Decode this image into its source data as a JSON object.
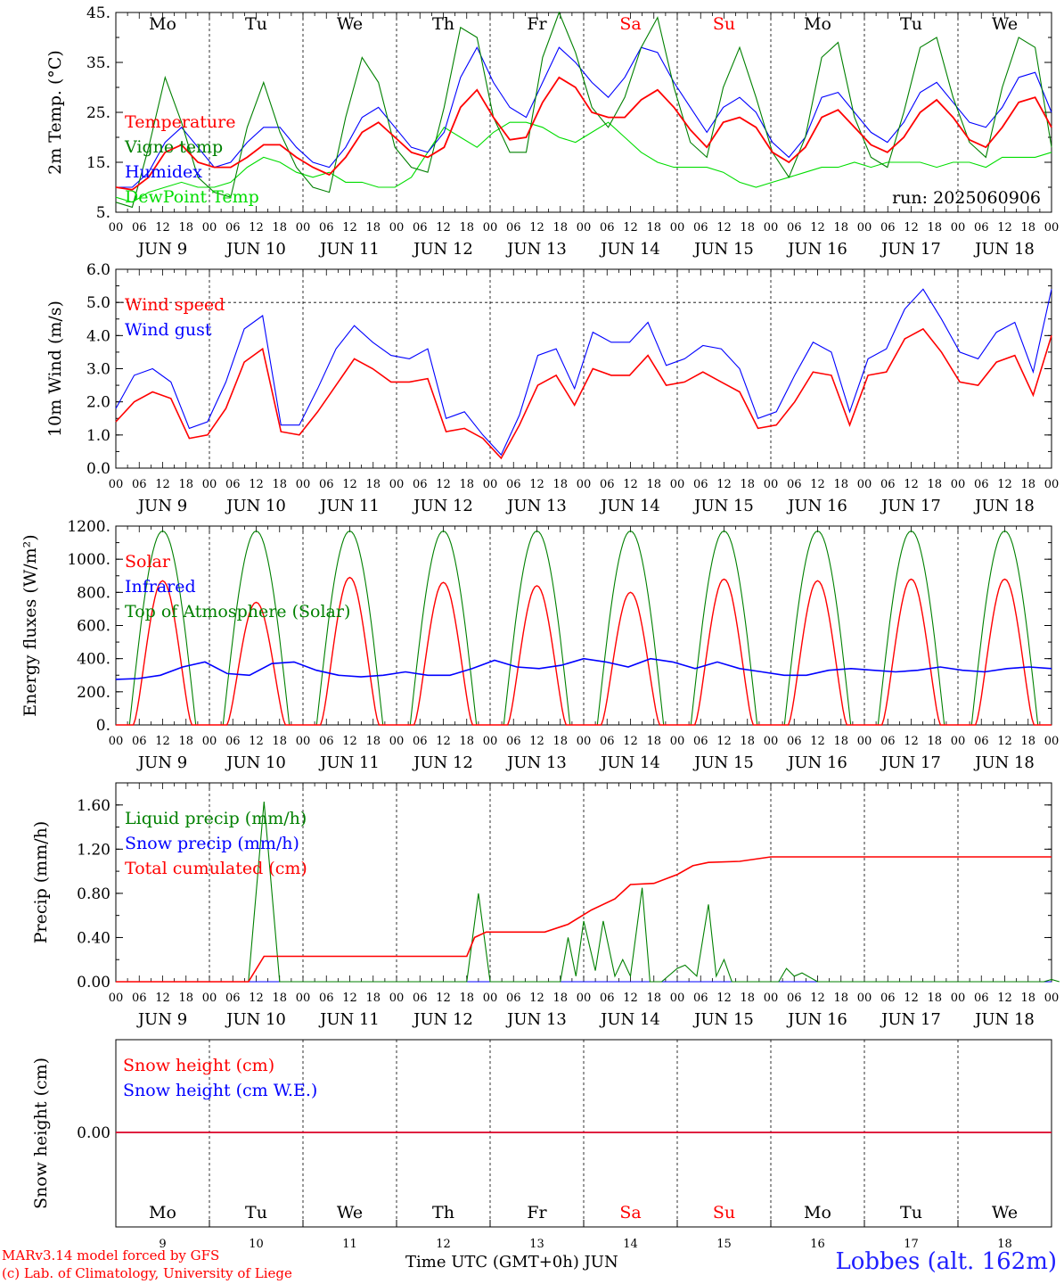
{
  "run_label": "run: 2025060906",
  "footer": {
    "model": "MARv3.14 model forced by GFS",
    "credit": "(c) Lab. of Climatology, University of Liege",
    "xlabel": "Time UTC (GMT+0h) JUN",
    "station": "Lobbes (alt. 162m)"
  },
  "days": [
    {
      "name": "Mo",
      "date": "JUN 9",
      "num": "9",
      "weekend": false
    },
    {
      "name": "Tu",
      "date": "JUN 10",
      "num": "10",
      "weekend": false
    },
    {
      "name": "We",
      "date": "JUN 11",
      "num": "11",
      "weekend": false
    },
    {
      "name": "Th",
      "date": "JUN 12",
      "num": "12",
      "weekend": false
    },
    {
      "name": "Fr",
      "date": "JUN 13",
      "num": "13",
      "weekend": false
    },
    {
      "name": "Sa",
      "date": "JUN 14",
      "num": "14",
      "weekend": true
    },
    {
      "name": "Su",
      "date": "JUN 15",
      "num": "15",
      "weekend": true
    },
    {
      "name": "Mo",
      "date": "JUN 16",
      "num": "16",
      "weekend": false
    },
    {
      "name": "Tu",
      "date": "JUN 17",
      "num": "17",
      "weekend": false
    },
    {
      "name": "We",
      "date": "JUN 18",
      "num": "18",
      "weekend": false
    }
  ],
  "hour_ticks": [
    "00",
    "06",
    "12",
    "18"
  ],
  "colors": {
    "red": "#ff0000",
    "green": "#008000",
    "blue": "#0000ff",
    "lightgreen": "#00dd00"
  },
  "chart_data": [
    {
      "type": "line",
      "ylabel": "2m Temp. (°C)",
      "yticks": [
        "45.",
        "35.",
        "25.",
        "15.",
        "5."
      ],
      "ylim": [
        5,
        45
      ],
      "x": "hours from JUN 9 00 UTC, step 6",
      "series": [
        {
          "name": "Temperature",
          "color": "red",
          "values": [
            10,
            9.5,
            12,
            17,
            18.5,
            15,
            14,
            14,
            16,
            18.5,
            18.5,
            16,
            14,
            12.5,
            16,
            21,
            23,
            20,
            17,
            16,
            18,
            26,
            29.5,
            24,
            19.5,
            20,
            27,
            32,
            30,
            25,
            24,
            24,
            27.5,
            29.5,
            26,
            21.5,
            18,
            23,
            24,
            22,
            17,
            15,
            18,
            24,
            25.5,
            22,
            18.5,
            17,
            20,
            25,
            27.5,
            24,
            19.5,
            18,
            22,
            27,
            28,
            22
          ]
        },
        {
          "name": "Vigne temp",
          "color": "green",
          "values": [
            7,
            6,
            18,
            32,
            23,
            12,
            9,
            8,
            22,
            31,
            21,
            14,
            10,
            9,
            24,
            36,
            31,
            18,
            14,
            13,
            26,
            42,
            40,
            24,
            17,
            17,
            36,
            45,
            37,
            26,
            22,
            28,
            38,
            44,
            30,
            19,
            16,
            30,
            38,
            28,
            17,
            12,
            20,
            36,
            39,
            24,
            16,
            14,
            25,
            38,
            40,
            28,
            19,
            16,
            30,
            40,
            38,
            18
          ]
        },
        {
          "name": "Humidex",
          "color": "blue",
          "values": [
            10,
            10,
            13,
            19,
            22,
            18,
            14,
            15,
            19,
            22,
            22,
            18,
            15,
            14,
            18,
            24,
            26,
            22,
            18,
            17,
            21,
            32,
            38,
            31,
            26,
            24,
            31,
            38,
            35,
            31,
            28,
            32,
            38,
            37,
            31,
            26,
            21,
            26,
            28,
            25,
            19,
            16,
            20,
            28,
            29,
            25,
            21,
            19,
            23,
            29,
            31,
            27,
            23,
            22,
            26,
            32,
            33,
            25
          ]
        },
        {
          "name": "DewPoint Temp",
          "color": "lightgreen",
          "values": [
            8,
            7,
            9,
            10,
            11,
            10,
            10,
            11,
            14,
            16,
            15,
            13,
            12,
            13,
            11,
            11,
            10,
            10,
            12,
            17,
            22,
            20,
            18,
            21,
            23,
            23,
            22,
            20,
            19,
            21,
            23,
            20,
            17,
            15,
            14,
            14,
            14,
            13,
            11,
            10,
            11,
            12,
            13,
            14,
            14,
            15,
            14,
            15,
            15,
            15,
            14,
            15,
            15,
            14,
            16,
            16,
            16,
            17
          ]
        }
      ],
      "legend": "top-left"
    },
    {
      "type": "line",
      "ylabel": "10m Wind (m/s)",
      "yticks": [
        "6.0",
        "5.0",
        "4.0",
        "3.0",
        "2.0",
        "1.0",
        "0.0"
      ],
      "ylim": [
        0,
        6
      ],
      "reference_line": 5.0,
      "x": "hours from JUN 9 00 UTC, step 6",
      "series": [
        {
          "name": "Wind speed",
          "color": "red",
          "values": [
            1.4,
            2.0,
            2.3,
            2.1,
            0.9,
            1.0,
            1.8,
            3.2,
            3.6,
            1.1,
            1.0,
            1.7,
            2.5,
            3.3,
            3.0,
            2.6,
            2.6,
            2.7,
            1.1,
            1.2,
            0.9,
            0.3,
            1.3,
            2.5,
            2.8,
            1.9,
            3.0,
            2.8,
            2.8,
            3.4,
            2.5,
            2.6,
            2.9,
            2.6,
            2.3,
            1.2,
            1.3,
            2.0,
            2.9,
            2.8,
            1.3,
            2.8,
            2.9,
            3.9,
            4.2,
            3.5,
            2.6,
            2.5,
            3.2,
            3.4,
            2.2,
            4.0
          ]
        },
        {
          "name": "Wind gust",
          "color": "blue",
          "values": [
            1.8,
            2.8,
            3.0,
            2.6,
            1.2,
            1.4,
            2.6,
            4.2,
            4.6,
            1.3,
            1.3,
            2.4,
            3.6,
            4.3,
            3.8,
            3.4,
            3.3,
            3.6,
            1.5,
            1.7,
            1.0,
            0.4,
            1.6,
            3.4,
            3.6,
            2.4,
            4.1,
            3.8,
            3.8,
            4.4,
            3.1,
            3.3,
            3.7,
            3.6,
            3.0,
            1.5,
            1.7,
            2.8,
            3.8,
            3.5,
            1.7,
            3.3,
            3.6,
            4.8,
            5.4,
            4.5,
            3.5,
            3.3,
            4.1,
            4.4,
            2.9,
            5.4
          ]
        }
      ],
      "legend": "top-left"
    },
    {
      "type": "line",
      "ylabel": "Energy fluxes (W/m²)",
      "yticks": [
        "1200.",
        "1000.",
        "800.",
        "600.",
        "400.",
        "200.",
        "0."
      ],
      "ylim": [
        0,
        1200
      ],
      "series": [
        {
          "name": "Solar",
          "color": "red",
          "peaks": [
            870,
            740,
            890,
            860,
            840,
            800,
            880,
            870,
            880,
            880
          ]
        },
        {
          "name": "Infrared",
          "color": "blue",
          "values": [
            275,
            280,
            300,
            350,
            380,
            310,
            300,
            370,
            380,
            330,
            300,
            290,
            300,
            320,
            300,
            300,
            340,
            390,
            350,
            340,
            360,
            400,
            380,
            350,
            400,
            380,
            340,
            380,
            340,
            320,
            300,
            300,
            330,
            340,
            330,
            320,
            330,
            350,
            330,
            320,
            340,
            350,
            340
          ]
        },
        {
          "name": "Top of Atmosphere (Solar)",
          "color": "green",
          "peaks": [
            1170,
            1170,
            1170,
            1170,
            1170,
            1170,
            1170,
            1170,
            1170,
            1170
          ]
        }
      ],
      "legend": "top-left"
    },
    {
      "type": "line",
      "ylabel": "Precip (mm/h)",
      "yticks": [
        "1.60",
        "1.20",
        "0.80",
        "0.40",
        "0.00"
      ],
      "ylim": [
        0,
        1.8
      ],
      "series": [
        {
          "name": "Liquid precip (mm/h)",
          "color": "green",
          "points": [
            [
              0,
              0
            ],
            [
              34,
              0
            ],
            [
              38,
              1.63
            ],
            [
              42,
              0
            ],
            [
              90,
              0
            ],
            [
              93,
              0.8
            ],
            [
              96,
              0
            ],
            [
              114,
              0
            ],
            [
              116,
              0.4
            ],
            [
              118,
              0.05
            ],
            [
              120,
              0.55
            ],
            [
              123,
              0.1
            ],
            [
              125,
              0.55
            ],
            [
              128,
              0.05
            ],
            [
              130,
              0.2
            ],
            [
              132,
              0.05
            ],
            [
              135,
              0.85
            ],
            [
              137,
              0
            ],
            [
              140,
              0
            ],
            [
              144,
              0.12
            ],
            [
              146,
              0.15
            ],
            [
              149,
              0.05
            ],
            [
              152,
              0.7
            ],
            [
              154,
              0.05
            ],
            [
              156,
              0.2
            ],
            [
              158,
              0
            ],
            [
              170,
              0
            ],
            [
              172,
              0.12
            ],
            [
              174,
              0.05
            ],
            [
              176,
              0.08
            ],
            [
              180,
              0
            ],
            [
              238,
              0
            ],
            [
              240,
              0.02
            ],
            [
              242,
              0
            ]
          ]
        },
        {
          "name": "Snow precip (mm/h)",
          "color": "blue",
          "points": [
            [
              0,
              0
            ],
            [
              240,
              0
            ]
          ]
        },
        {
          "name": "Total cumulated (cm)",
          "color": "red",
          "points": [
            [
              0,
              0
            ],
            [
              34,
              0
            ],
            [
              38,
              0.23
            ],
            [
              90,
              0.23
            ],
            [
              92,
              0.4
            ],
            [
              95,
              0.45
            ],
            [
              110,
              0.45
            ],
            [
              116,
              0.52
            ],
            [
              122,
              0.65
            ],
            [
              128,
              0.75
            ],
            [
              132,
              0.88
            ],
            [
              138,
              0.89
            ],
            [
              144,
              0.97
            ],
            [
              148,
              1.05
            ],
            [
              152,
              1.08
            ],
            [
              160,
              1.09
            ],
            [
              168,
              1.13
            ],
            [
              240,
              1.13
            ]
          ]
        }
      ],
      "legend": "top-left"
    },
    {
      "type": "line",
      "ylabel": "Snow height (cm)",
      "yticks": [
        "0.00"
      ],
      "series": [
        {
          "name": "Snow height (cm)",
          "color": "red",
          "points": [
            [
              0,
              0
            ],
            [
              240,
              0
            ]
          ]
        },
        {
          "name": "Snow height (cm W.E.)",
          "color": "blue",
          "points": [
            [
              0,
              0
            ],
            [
              240,
              0
            ]
          ]
        }
      ],
      "legend": "top-left"
    }
  ]
}
